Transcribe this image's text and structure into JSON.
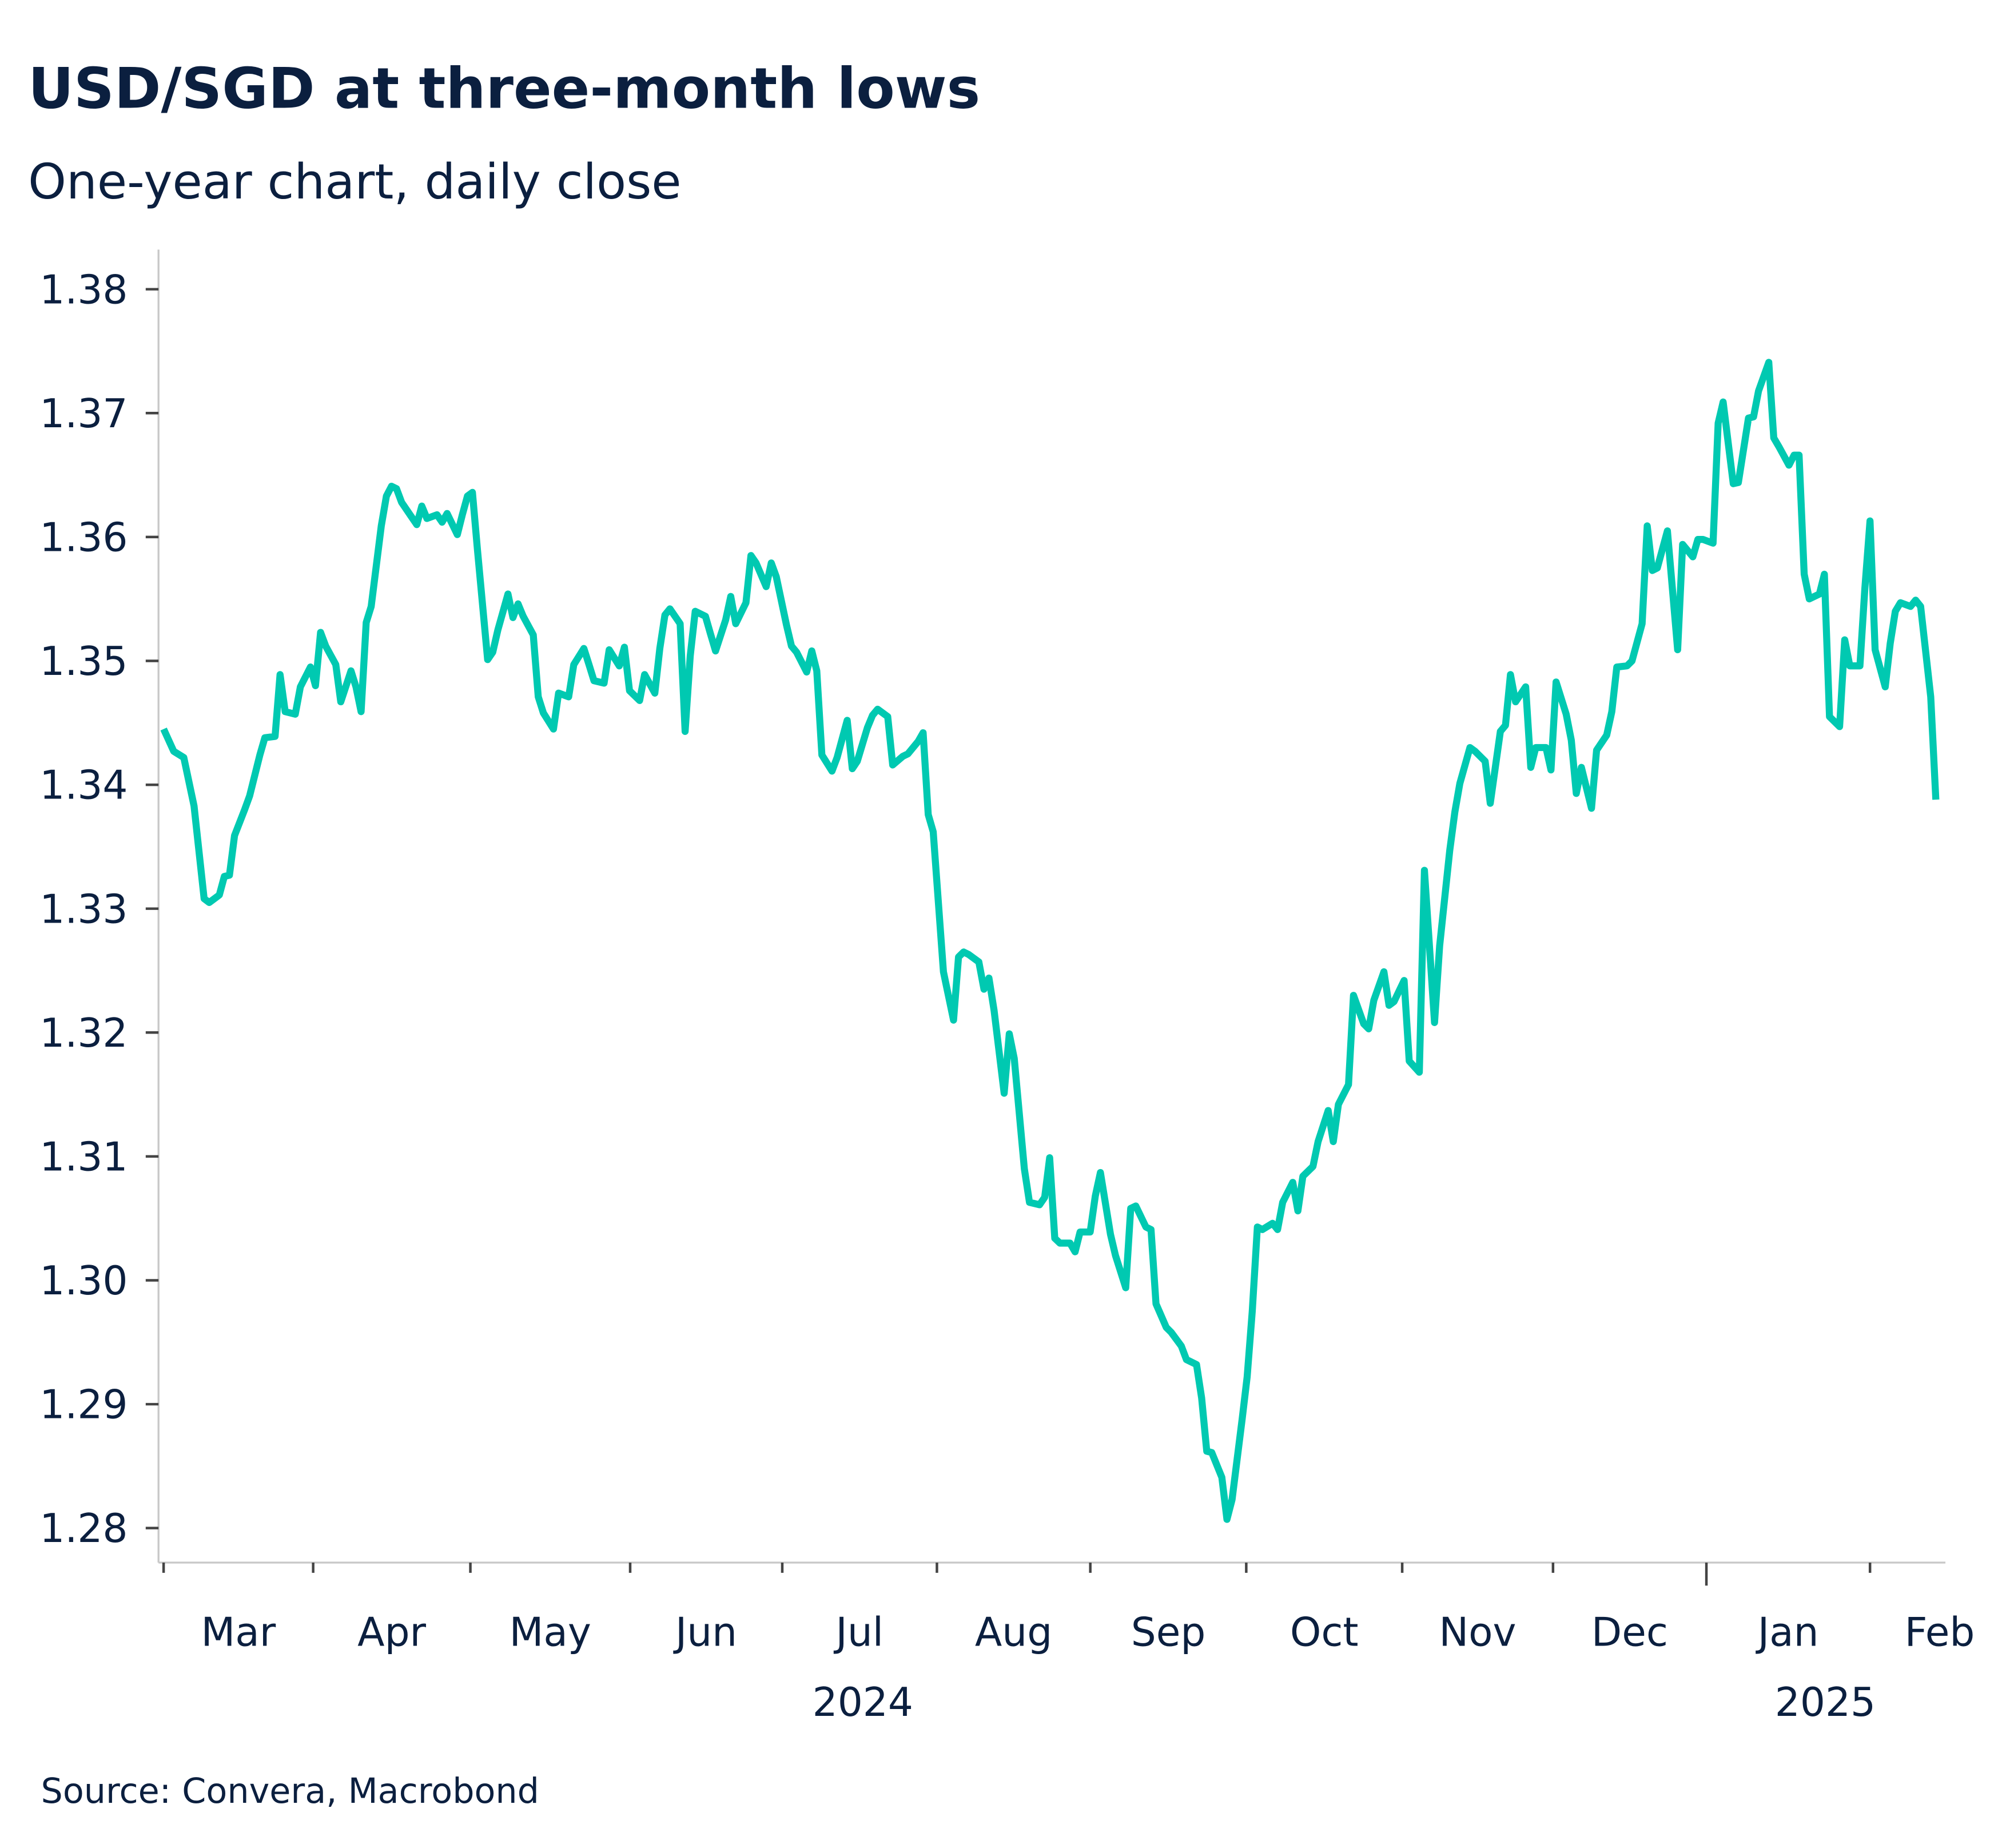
{
  "chart_data": {
    "type": "line",
    "title": "USD/SGD at three-month lows",
    "subtitle": "One-year chart, daily close",
    "source": "Source: Convera, Macrobond",
    "xlabel": "",
    "ylabel": "",
    "ylim": [
      1.28,
      1.38
    ],
    "yticks": [
      "1.28",
      "1.29",
      "1.30",
      "1.31",
      "1.32",
      "1.33",
      "1.34",
      "1.35",
      "1.36",
      "1.37",
      "1.38"
    ],
    "xtick_labels": [
      "Mar",
      "Apr",
      "May",
      "Jun",
      "Jul",
      "Aug",
      "Sep",
      "Oct",
      "Nov",
      "Dec",
      "Jan",
      "Feb"
    ],
    "year_labels": [
      "2024",
      "2025"
    ],
    "grid": false,
    "line_color": "#00c9b1",
    "x": [
      "2024-03-01",
      "2024-03-03",
      "2024-03-05",
      "2024-03-07",
      "2024-03-09",
      "2024-03-10",
      "2024-03-12",
      "2024-03-13",
      "2024-03-14",
      "2024-03-15",
      "2024-03-17",
      "2024-03-18",
      "2024-03-20",
      "2024-03-21",
      "2024-03-23",
      "2024-03-24",
      "2024-03-25",
      "2024-03-27",
      "2024-03-28",
      "2024-03-30",
      "2024-03-31",
      "2024-04-01",
      "2024-04-02",
      "2024-04-04",
      "2024-04-05",
      "2024-04-07",
      "2024-04-08",
      "2024-04-09",
      "2024-04-10",
      "2024-04-11",
      "2024-04-13",
      "2024-04-14",
      "2024-04-15",
      "2024-04-16",
      "2024-04-17",
      "2024-04-19",
      "2024-04-20",
      "2024-04-21",
      "2024-04-22",
      "2024-04-24",
      "2024-04-25",
      "2024-04-26",
      "2024-04-28",
      "2024-04-29",
      "2024-04-30",
      "2024-05-01",
      "2024-05-02",
      "2024-05-04",
      "2024-05-05",
      "2024-05-06",
      "2024-05-08",
      "2024-05-09",
      "2024-05-10",
      "2024-05-11",
      "2024-05-13",
      "2024-05-14",
      "2024-05-15",
      "2024-05-17",
      "2024-05-18",
      "2024-05-20",
      "2024-05-21",
      "2024-05-23",
      "2024-05-24",
      "2024-05-25",
      "2024-05-27",
      "2024-05-28",
      "2024-05-30",
      "2024-05-31",
      "2024-06-01",
      "2024-06-03",
      "2024-06-04",
      "2024-06-06",
      "2024-06-07",
      "2024-06-08",
      "2024-06-09",
      "2024-06-11",
      "2024-06-12",
      "2024-06-13",
      "2024-06-14",
      "2024-06-16",
      "2024-06-17",
      "2024-06-18",
      "2024-06-20",
      "2024-06-21",
      "2024-06-22",
      "2024-06-24",
      "2024-06-25",
      "2024-06-26",
      "2024-06-28",
      "2024-06-29",
      "2024-06-30",
      "2024-07-02",
      "2024-07-03",
      "2024-07-04",
      "2024-07-06",
      "2024-07-07",
      "2024-07-08",
      "2024-07-09",
      "2024-07-11",
      "2024-07-12",
      "2024-07-14",
      "2024-07-15",
      "2024-07-16",
      "2024-07-18",
      "2024-07-19",
      "2024-07-20",
      "2024-07-22",
      "2024-07-23",
      "2024-07-25",
      "2024-07-26",
      "2024-07-28",
      "2024-07-29",
      "2024-07-30",
      "2024-07-31",
      "2024-08-02",
      "2024-08-04",
      "2024-08-05",
      "2024-08-06",
      "2024-08-07",
      "2024-08-09",
      "2024-08-10",
      "2024-08-11",
      "2024-08-12",
      "2024-08-14",
      "2024-08-15",
      "2024-08-16",
      "2024-08-18",
      "2024-08-19",
      "2024-08-21",
      "2024-08-22",
      "2024-08-23",
      "2024-08-24",
      "2024-08-25",
      "2024-08-27",
      "2024-08-28",
      "2024-08-29",
      "2024-08-31",
      "2024-09-01",
      "2024-09-02",
      "2024-09-04",
      "2024-09-05",
      "2024-09-07",
      "2024-09-08",
      "2024-09-09",
      "2024-09-11",
      "2024-09-12",
      "2024-09-13",
      "2024-09-15",
      "2024-09-16",
      "2024-09-18",
      "2024-09-19",
      "2024-09-21",
      "2024-09-22",
      "2024-09-23",
      "2024-09-24",
      "2024-09-26",
      "2024-09-27",
      "2024-09-28",
      "2024-09-30",
      "2024-10-01",
      "2024-10-02",
      "2024-10-03",
      "2024-10-04",
      "2024-10-06",
      "2024-10-07",
      "2024-10-08",
      "2024-10-10",
      "2024-10-11",
      "2024-10-12",
      "2024-10-14",
      "2024-10-15",
      "2024-10-17",
      "2024-10-18",
      "2024-10-19",
      "2024-10-21",
      "2024-10-22",
      "2024-10-24",
      "2024-10-25",
      "2024-10-26",
      "2024-10-28",
      "2024-10-29",
      "2024-10-30",
      "2024-11-01",
      "2024-11-02",
      "2024-11-04",
      "2024-11-05",
      "2024-11-07",
      "2024-11-08",
      "2024-11-10",
      "2024-11-11",
      "2024-11-12",
      "2024-11-14",
      "2024-11-15",
      "2024-11-17",
      "2024-11-18",
      "2024-11-20",
      "2024-11-21",
      "2024-11-22",
      "2024-11-23",
      "2024-11-25",
      "2024-11-26",
      "2024-11-27",
      "2024-11-29",
      "2024-11-30",
      "2024-12-01",
      "2024-12-03",
      "2024-12-04",
      "2024-12-05",
      "2024-12-06",
      "2024-12-08",
      "2024-12-09",
      "2024-12-11",
      "2024-12-12",
      "2024-12-13",
      "2024-12-15",
      "2024-12-16",
      "2024-12-18",
      "2024-12-19",
      "2024-12-20",
      "2024-12-21",
      "2024-12-23",
      "2024-12-25",
      "2024-12-26",
      "2024-12-28",
      "2024-12-29",
      "2024-12-30",
      "2025-01-01",
      "2025-01-02",
      "2025-01-03",
      "2025-01-05",
      "2025-01-06",
      "2025-01-08",
      "2025-01-09",
      "2025-01-10",
      "2025-01-12",
      "2025-01-13",
      "2025-01-14",
      "2025-01-16",
      "2025-01-17",
      "2025-01-18",
      "2025-01-19",
      "2025-01-20",
      "2025-01-22",
      "2025-01-23",
      "2025-01-24",
      "2025-01-26",
      "2025-01-27",
      "2025-01-28",
      "2025-01-30",
      "2025-01-31",
      "2025-02-01",
      "2025-02-02",
      "2025-02-04",
      "2025-02-05",
      "2025-02-06",
      "2025-02-07",
      "2025-02-09",
      "2025-02-10",
      "2025-02-11",
      "2025-02-13",
      "2025-02-14"
    ],
    "y": [
      1.3445,
      1.3427,
      1.3422,
      1.3383,
      1.3308,
      1.3305,
      1.3311,
      1.3326,
      1.3327,
      1.3359,
      1.338,
      1.3391,
      1.3424,
      1.3438,
      1.3439,
      1.3489,
      1.3459,
      1.3457,
      1.3479,
      1.3495,
      1.348,
      1.3523,
      1.3512,
      1.3497,
      1.3467,
      1.3492,
      1.3479,
      1.3459,
      1.3531,
      1.3544,
      1.3609,
      1.3633,
      1.3641,
      1.3639,
      1.3628,
      1.3616,
      1.361,
      1.3625,
      1.3615,
      1.3618,
      1.3612,
      1.3619,
      1.3602,
      1.3618,
      1.3633,
      1.3636,
      1.3589,
      1.3501,
      1.3507,
      1.3525,
      1.3554,
      1.3535,
      1.3546,
      1.3536,
      1.3521,
      1.3471,
      1.3458,
      1.3445,
      1.3474,
      1.3471,
      1.3497,
      1.351,
      1.3497,
      1.3484,
      1.3482,
      1.3509,
      1.3496,
      1.3511,
      1.3476,
      1.3468,
      1.3489,
      1.3474,
      1.351,
      1.3537,
      1.3542,
      1.353,
      1.3443,
      1.3504,
      1.354,
      1.3536,
      1.3522,
      1.3508,
      1.3533,
      1.3552,
      1.353,
      1.3547,
      1.3585,
      1.3579,
      1.356,
      1.3579,
      1.3568,
      1.3529,
      1.3512,
      1.3507,
      1.3491,
      1.3508,
      1.3492,
      1.3424,
      1.3411,
      1.3422,
      1.3452,
      1.3413,
      1.3419,
      1.3446,
      1.3456,
      1.3461,
      1.3455,
      1.3416,
      1.3423,
      1.3425,
      1.3435,
      1.3442,
      1.3376,
      1.3362,
      1.3249,
      1.321,
      1.3261,
      1.3265,
      1.3263,
      1.3257,
      1.3235,
      1.3244,
      1.3218,
      1.3151,
      1.3199,
      1.3179,
      1.309,
      1.3063,
      1.3061,
      1.3067,
      1.3099,
      1.3034,
      1.303,
      1.303,
      1.3023,
      1.3039,
      1.3039,
      1.3068,
      1.3087,
      1.3037,
      1.302,
      1.2994,
      1.3058,
      1.306,
      1.3043,
      1.3041,
      1.2981,
      1.2962,
      1.2958,
      1.2947,
      1.2936,
      1.2932,
      1.2905,
      1.2862,
      1.2861,
      1.2841,
      1.2807,
      1.2823,
      1.2888,
      1.2922,
      1.2975,
      1.3043,
      1.3041,
      1.3046,
      1.3041,
      1.3063,
      1.3079,
      1.3056,
      1.3084,
      1.3092,
      1.3112,
      1.3137,
      1.3112,
      1.3142,
      1.3158,
      1.323,
      1.3207,
      1.3203,
      1.3226,
      1.3249,
      1.3222,
      1.3225,
      1.3242,
      1.3177,
      1.3168,
      1.3331,
      1.3208,
      1.327,
      1.3347,
      1.3378,
      1.3401,
      1.343,
      1.3427,
      1.3419,
      1.3385,
      1.3443,
      1.3448,
      1.3489,
      1.3467,
      1.3479,
      1.3414,
      1.343,
      1.343,
      1.3412,
      1.3483,
      1.3457,
      1.3436,
      1.3393,
      1.3414,
      1.3381,
      1.3428,
      1.344,
      1.3459,
      1.3495,
      1.3496,
      1.35,
      1.353,
      1.3609,
      1.3573,
      1.3575,
      1.3605,
      1.3509,
      1.3594,
      1.3584,
      1.3598,
      1.3598,
      1.3595,
      1.3692,
      1.3709,
      1.3643,
      1.3644,
      1.3696,
      1.3697,
      1.3718,
      1.3741,
      1.368,
      1.3673,
      1.3658,
      1.3666,
      1.3666,
      1.357,
      1.355,
      1.3554,
      1.357,
      1.3455,
      1.3447,
      1.3517,
      1.3496,
      1.3496,
      1.3559,
      1.3613,
      1.3509,
      1.3479,
      1.3514,
      1.354,
      1.3547,
      1.3544,
      1.3549,
      1.3544,
      1.3471,
      1.3388
    ]
  }
}
